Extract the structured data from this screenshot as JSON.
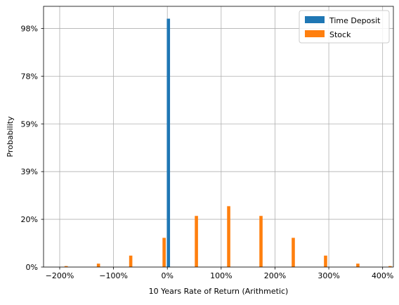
{
  "chart_data": {
    "type": "bar",
    "title": "",
    "xlabel": "10 Years Rate of Return (Arithmetic)",
    "ylabel": "Probability",
    "xlim": [
      -2.3,
      4.2
    ],
    "ylim": [
      0,
      1.0707
    ],
    "xticks": [
      {
        "value": -2,
        "label": "−200%"
      },
      {
        "value": -1,
        "label": "−100%"
      },
      {
        "value": 0,
        "label": "0%"
      },
      {
        "value": 1,
        "label": "100%"
      },
      {
        "value": 2,
        "label": "200%"
      },
      {
        "value": 3,
        "label": "300%"
      },
      {
        "value": 4,
        "label": "400%"
      }
    ],
    "yticks": [
      {
        "value": 0.0,
        "label": "0%"
      },
      {
        "value": 0.196,
        "label": "20%"
      },
      {
        "value": 0.392,
        "label": "39%"
      },
      {
        "value": 0.588,
        "label": "59%"
      },
      {
        "value": 0.784,
        "label": "78%"
      },
      {
        "value": 0.98,
        "label": "98%"
      }
    ],
    "grid": true,
    "legend_position": "upper right",
    "bar_width": 0.06,
    "series": [
      {
        "name": "Time Deposit",
        "color": "#1f77b4",
        "points": [
          {
            "x": 0.02,
            "y": 1.02
          }
        ]
      },
      {
        "name": "Stock",
        "color": "#ff7f0e",
        "points": [
          {
            "x": -1.88,
            "y": 0.004
          },
          {
            "x": -1.28,
            "y": 0.014
          },
          {
            "x": -0.68,
            "y": 0.047
          },
          {
            "x": -0.06,
            "y": 0.12
          },
          {
            "x": 0.54,
            "y": 0.21
          },
          {
            "x": 1.14,
            "y": 0.25
          },
          {
            "x": 1.74,
            "y": 0.21
          },
          {
            "x": 2.34,
            "y": 0.12
          },
          {
            "x": 2.94,
            "y": 0.047
          },
          {
            "x": 3.54,
            "y": 0.014
          },
          {
            "x": 4.14,
            "y": 0.004
          }
        ]
      }
    ]
  }
}
